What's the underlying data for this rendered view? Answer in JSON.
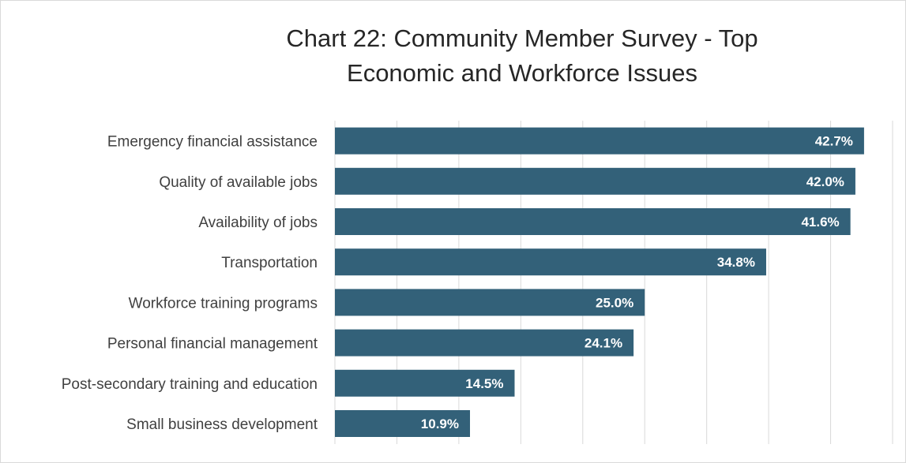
{
  "chart_data": {
    "type": "bar",
    "orientation": "horizontal",
    "title": "Chart 22: Community Member Survey - Top Economic and Workforce Issues",
    "categories": [
      "Emergency financial assistance",
      "Quality of available jobs",
      "Availability of jobs",
      "Transportation",
      "Workforce training programs",
      "Personal financial management",
      "Post-secondary training and education",
      "Small business development"
    ],
    "values": [
      42.7,
      42.0,
      41.6,
      34.8,
      25.0,
      24.1,
      14.5,
      10.9
    ],
    "data_labels": [
      "42.7%",
      "42.0%",
      "41.6%",
      "34.8%",
      "25.0%",
      "24.1%",
      "14.5%",
      "10.9%"
    ],
    "xlim": [
      0,
      45
    ],
    "grid": true,
    "bar_color": "#336179",
    "grid_color": "#d9d9d9",
    "legend": "none"
  }
}
